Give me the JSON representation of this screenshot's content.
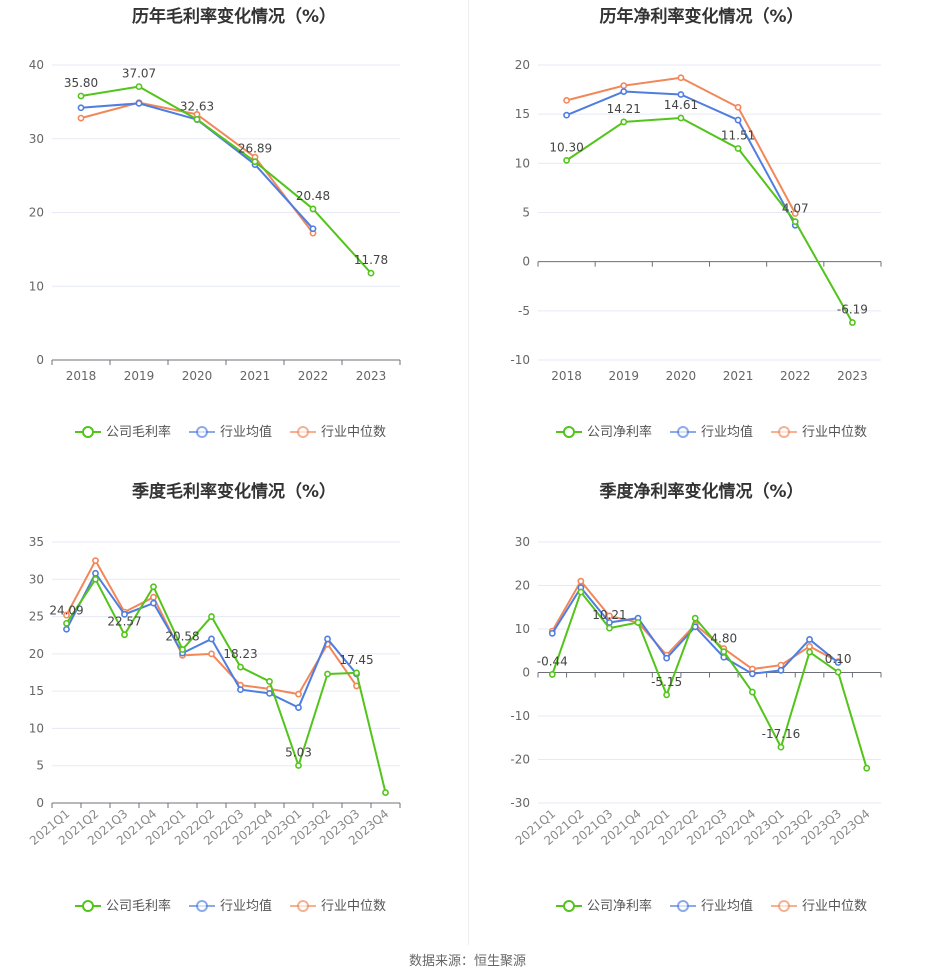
{
  "chart_data": [
    {
      "type": "line",
      "title": "历年毛利率变化情况（%）",
      "categories": [
        "2018",
        "2019",
        "2020",
        "2021",
        "2022",
        "2023"
      ],
      "ylim": [
        0,
        40
      ],
      "yticks": [
        0,
        10,
        20,
        30,
        40
      ],
      "grid": true,
      "legend_position": "bottom",
      "series": [
        {
          "name": "公司毛利率",
          "color": "#52c41a",
          "values": [
            35.8,
            37.07,
            32.63,
            26.89,
            20.48,
            11.78
          ],
          "labels": [
            "35.80",
            "37.07",
            "32.63",
            "26.89",
            "20.48",
            "11.78"
          ]
        },
        {
          "name": "行业均值",
          "color": "#4f7de0",
          "values": [
            34.2,
            34.8,
            32.6,
            26.5,
            17.8,
            null
          ]
        },
        {
          "name": "行业中位数",
          "color": "#f2875a",
          "values": [
            32.8,
            34.9,
            33.3,
            27.5,
            17.2,
            null
          ]
        }
      ]
    },
    {
      "type": "line",
      "title": "历年净利率变化情况（%）",
      "categories": [
        "2018",
        "2019",
        "2020",
        "2021",
        "2022",
        "2023"
      ],
      "ylim": [
        -10,
        20
      ],
      "yticks": [
        -10,
        -5,
        0,
        5,
        10,
        15,
        20
      ],
      "grid": true,
      "legend_position": "bottom",
      "series": [
        {
          "name": "公司净利率",
          "color": "#52c41a",
          "values": [
            10.3,
            14.21,
            14.61,
            11.51,
            4.07,
            -6.19
          ],
          "labels": [
            "10.30",
            "14.21",
            "14.61",
            "11.51",
            "4.07",
            "-6.19"
          ]
        },
        {
          "name": "行业均值",
          "color": "#4f7de0",
          "values": [
            14.9,
            17.3,
            17.0,
            14.4,
            3.7,
            null
          ]
        },
        {
          "name": "行业中位数",
          "color": "#f2875a",
          "values": [
            16.4,
            17.9,
            18.7,
            15.7,
            4.9,
            null
          ]
        }
      ]
    },
    {
      "type": "line",
      "title": "季度毛利率变化情况（%）",
      "categories": [
        "2021Q1",
        "2021Q2",
        "2021Q3",
        "2021Q4",
        "2022Q1",
        "2022Q2",
        "2022Q3",
        "2022Q4",
        "2023Q1",
        "2023Q2",
        "2023Q3",
        "2023Q4"
      ],
      "ylim": [
        0,
        35
      ],
      "yticks": [
        0,
        5,
        10,
        15,
        20,
        25,
        30,
        35
      ],
      "grid": true,
      "legend_position": "bottom",
      "series": [
        {
          "name": "公司毛利率",
          "color": "#52c41a",
          "values": [
            24.09,
            30.0,
            22.57,
            29.0,
            20.58,
            25.0,
            18.23,
            16.3,
            5.03,
            17.3,
            17.45,
            1.4
          ],
          "labels": [
            "24.09",
            "",
            "22.57",
            "",
            "20.58",
            "",
            "18.23",
            "",
            "5.03",
            "",
            "17.45",
            ""
          ]
        },
        {
          "name": "行业均值",
          "color": "#4f7de0",
          "values": [
            23.3,
            30.8,
            25.3,
            26.8,
            20.1,
            22.0,
            15.2,
            14.7,
            12.8,
            22.0,
            17.3,
            null
          ]
        },
        {
          "name": "行业中位数",
          "color": "#f2875a",
          "values": [
            25.2,
            32.5,
            25.6,
            27.6,
            19.8,
            20.0,
            15.8,
            15.3,
            14.6,
            21.3,
            15.7,
            null
          ]
        }
      ]
    },
    {
      "type": "line",
      "title": "季度净利率变化情况（%）",
      "categories": [
        "2021Q1",
        "2021Q2",
        "2021Q3",
        "2021Q4",
        "2022Q1",
        "2022Q2",
        "2022Q3",
        "2022Q4",
        "2023Q1",
        "2023Q2",
        "2023Q3",
        "2023Q4"
      ],
      "ylim": [
        -30,
        30
      ],
      "yticks": [
        -30,
        -20,
        -10,
        0,
        10,
        20,
        30
      ],
      "grid": true,
      "legend_position": "bottom",
      "series": [
        {
          "name": "公司净利率",
          "color": "#52c41a",
          "values": [
            -0.44,
            18.5,
            10.21,
            11.5,
            -5.15,
            12.5,
            4.8,
            -4.5,
            -17.16,
            4.7,
            0.1,
            -22.0
          ],
          "labels": [
            "-0.44",
            "",
            "10.21",
            "",
            "-5.15",
            "",
            "4.80",
            "",
            "-17.16",
            "",
            "0.10",
            ""
          ]
        },
        {
          "name": "行业均值",
          "color": "#4f7de0",
          "values": [
            9.0,
            19.5,
            11.5,
            12.5,
            3.3,
            10.5,
            3.5,
            -0.3,
            0.5,
            7.6,
            2.3,
            null
          ]
        },
        {
          "name": "行业中位数",
          "color": "#f2875a",
          "values": [
            9.5,
            21.0,
            13.0,
            11.5,
            4.0,
            11.0,
            5.5,
            0.8,
            1.7,
            6.0,
            2.5,
            null
          ]
        }
      ]
    }
  ],
  "source_text": "数据来源：恒生聚源"
}
